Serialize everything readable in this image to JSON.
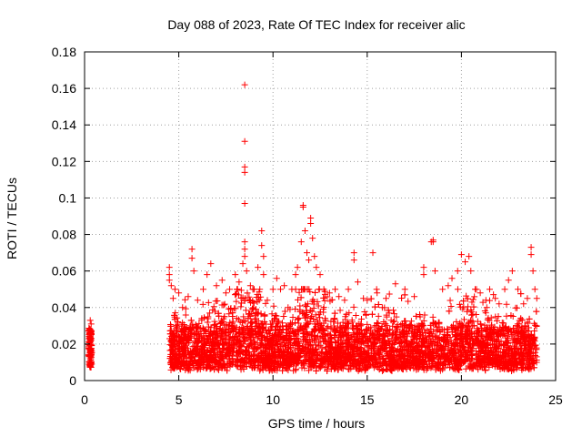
{
  "chart_data": {
    "type": "scatter",
    "title": "Day 088 of 2023, Rate Of TEC Index for receiver alic",
    "xlabel": "GPS time / hours",
    "ylabel": "ROTI / TECUs",
    "xlim": [
      0,
      25
    ],
    "ylim": [
      0,
      0.18
    ],
    "xticks": [
      0,
      5,
      10,
      15,
      20,
      25
    ],
    "yticks": [
      0,
      0.02,
      0.04,
      0.06,
      0.08,
      0.1,
      0.12,
      0.14,
      0.16,
      0.18
    ],
    "ytick_labels": [
      "0",
      "0.02",
      "0.04",
      "0.06",
      "0.08",
      "0.1",
      "0.12",
      "0.14",
      "0.16",
      "0.18"
    ],
    "grid": true,
    "marker": "plus",
    "colors": {
      "series": "#ff0000",
      "grid": "#a0a0a0",
      "axis": "#000000"
    },
    "series": [
      {
        "values_note": "",
        "points": [
          [
            0.3,
            0.033
          ],
          [
            0.3,
            0.028
          ],
          [
            0.3,
            0.024
          ],
          [
            0.3,
            0.02
          ],
          [
            0.3,
            0.016
          ],
          [
            0.3,
            0.012
          ],
          [
            0.3,
            0.008
          ],
          [
            0.35,
            0.031
          ],
          [
            0.35,
            0.022
          ],
          [
            0.35,
            0.014
          ],
          [
            4.5,
            0.062
          ],
          [
            4.5,
            0.058
          ],
          [
            4.5,
            0.055
          ],
          [
            4.6,
            0.052
          ],
          [
            4.7,
            0.045
          ],
          [
            4.8,
            0.05
          ],
          [
            5.0,
            0.048
          ],
          [
            5.2,
            0.04
          ],
          [
            5.5,
            0.046
          ],
          [
            5.7,
            0.072
          ],
          [
            5.7,
            0.067
          ],
          [
            5.8,
            0.06
          ],
          [
            6.0,
            0.044
          ],
          [
            6.3,
            0.05
          ],
          [
            6.5,
            0.058
          ],
          [
            6.7,
            0.064
          ],
          [
            7.0,
            0.052
          ],
          [
            7.3,
            0.055
          ],
          [
            7.5,
            0.048
          ],
          [
            7.7,
            0.05
          ],
          [
            8.0,
            0.058
          ],
          [
            8.2,
            0.054
          ],
          [
            8.4,
            0.064
          ],
          [
            8.5,
            0.162
          ],
          [
            8.5,
            0.131
          ],
          [
            8.5,
            0.117
          ],
          [
            8.5,
            0.114
          ],
          [
            8.5,
            0.097
          ],
          [
            8.5,
            0.076
          ],
          [
            8.5,
            0.072
          ],
          [
            8.5,
            0.068
          ],
          [
            8.6,
            0.06
          ],
          [
            8.8,
            0.052
          ],
          [
            9.0,
            0.05
          ],
          [
            9.2,
            0.062
          ],
          [
            9.4,
            0.082
          ],
          [
            9.4,
            0.074
          ],
          [
            9.5,
            0.068
          ],
          [
            9.5,
            0.058
          ],
          [
            9.7,
            0.044
          ],
          [
            10.0,
            0.05
          ],
          [
            10.2,
            0.056
          ],
          [
            10.4,
            0.05
          ],
          [
            10.6,
            0.052
          ],
          [
            10.8,
            0.04
          ],
          [
            11.0,
            0.05
          ],
          [
            11.2,
            0.058
          ],
          [
            11.3,
            0.062
          ],
          [
            11.5,
            0.076
          ],
          [
            11.6,
            0.096
          ],
          [
            11.6,
            0.095
          ],
          [
            11.7,
            0.082
          ],
          [
            11.8,
            0.07
          ],
          [
            11.9,
            0.066
          ],
          [
            12.0,
            0.089
          ],
          [
            12.0,
            0.086
          ],
          [
            12.1,
            0.078
          ],
          [
            12.2,
            0.068
          ],
          [
            12.3,
            0.062
          ],
          [
            12.5,
            0.058
          ],
          [
            12.7,
            0.05
          ],
          [
            13.0,
            0.048
          ],
          [
            13.3,
            0.05
          ],
          [
            13.5,
            0.046
          ],
          [
            13.8,
            0.044
          ],
          [
            14.0,
            0.05
          ],
          [
            14.3,
            0.07
          ],
          [
            14.3,
            0.066
          ],
          [
            14.5,
            0.054
          ],
          [
            14.8,
            0.045
          ],
          [
            15.0,
            0.044
          ],
          [
            15.3,
            0.07
          ],
          [
            15.5,
            0.05
          ],
          [
            15.8,
            0.04
          ],
          [
            16.0,
            0.045
          ],
          [
            16.5,
            0.053
          ],
          [
            17.0,
            0.05
          ],
          [
            17.5,
            0.046
          ],
          [
            18.0,
            0.062
          ],
          [
            18.0,
            0.058
          ],
          [
            18.5,
            0.077
          ],
          [
            18.5,
            0.076
          ],
          [
            18.4,
            0.076
          ],
          [
            18.6,
            0.06
          ],
          [
            19.0,
            0.05
          ],
          [
            19.3,
            0.052
          ],
          [
            19.5,
            0.056
          ],
          [
            19.8,
            0.06
          ],
          [
            20.0,
            0.069
          ],
          [
            20.2,
            0.065
          ],
          [
            20.4,
            0.068
          ],
          [
            20.5,
            0.06
          ],
          [
            20.8,
            0.05
          ],
          [
            21.0,
            0.048
          ],
          [
            21.3,
            0.044
          ],
          [
            21.5,
            0.05
          ],
          [
            21.8,
            0.045
          ],
          [
            22.0,
            0.042
          ],
          [
            22.3,
            0.05
          ],
          [
            22.5,
            0.055
          ],
          [
            22.7,
            0.06
          ],
          [
            23.0,
            0.05
          ],
          [
            23.3,
            0.042
          ],
          [
            23.5,
            0.045
          ],
          [
            23.7,
            0.073
          ],
          [
            23.7,
            0.069
          ],
          [
            23.8,
            0.06
          ],
          [
            23.9,
            0.05
          ],
          [
            24.0,
            0.045
          ]
        ]
      }
    ]
  }
}
